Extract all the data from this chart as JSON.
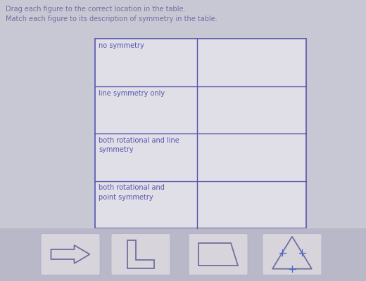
{
  "title1": "Drag each figure to the correct location in the table.",
  "title2": "Match each figure to its description of symmetry in the table.",
  "title_color": "#7070a0",
  "bg_color": "#c8c8d4",
  "table_bg": "#e0dfe8",
  "cell_text_color": "#5555aa",
  "shapes_bg": "#b8b8c8",
  "shape_fill": "#d8d4dc",
  "shape_stroke": "#7070a0",
  "row_labels": [
    "no symmetry",
    "line symmetry only",
    "both rotational and line\nsymmetry",
    "both rotational and\npoint symmetry"
  ]
}
